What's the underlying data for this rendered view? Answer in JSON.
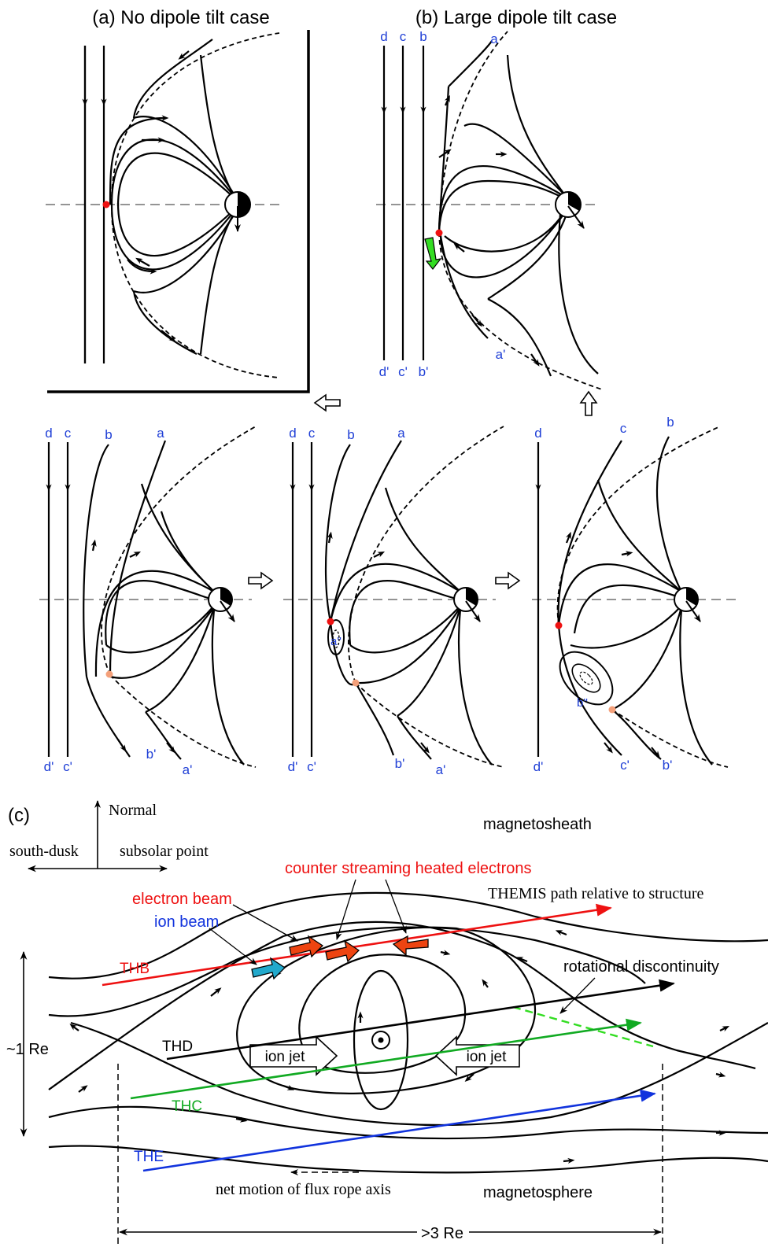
{
  "panel_a": {
    "title": "(a) No dipole tilt case"
  },
  "panel_b": {
    "title": "(b) Large dipole tilt case",
    "labels_top": [
      "d",
      "c",
      "b",
      "a"
    ],
    "labels_bottom": [
      "d'",
      "c'",
      "b'",
      "a'"
    ]
  },
  "step1": {
    "labels_top": [
      "d",
      "c",
      "b",
      "a"
    ],
    "labels_bottom": [
      "d'",
      "c'",
      "b'",
      "a'"
    ]
  },
  "step2": {
    "labels_top": [
      "d",
      "c",
      "b",
      "a"
    ],
    "labels_bottom": [
      "d'",
      "c'",
      "b'",
      "a'"
    ],
    "island_label": "a''"
  },
  "step3": {
    "labels_top": [
      "d",
      "c",
      "b"
    ],
    "labels_bottom": [
      "d'",
      "c'",
      "b'"
    ],
    "island_label": "b''"
  },
  "panel_c": {
    "title": "(c)",
    "normal": "Normal",
    "south_dusk": "south-dusk",
    "subsolar": "subsolar point",
    "magnetosheath": "magnetosheath",
    "magnetosphere": "magnetosphere",
    "counter_streaming": "counter streaming heated electrons",
    "electron_beam": "electron beam",
    "ion_beam": "ion beam",
    "themis_path": "THEMIS path relative to structure",
    "rotational": "rotational discontinuity",
    "thb": "THB",
    "thd": "THD",
    "thc": "THC",
    "the": "THE",
    "ion_jet_left": "ion jet",
    "ion_jet_right": "ion jet",
    "re_vertical": "~1 Re",
    "re_horizontal": ">3 Re",
    "net_motion": "net motion of flux rope axis"
  },
  "colors": {
    "label_blue": "#1f3fd6",
    "thb": "#ee1111",
    "thc": "#11aa22",
    "the": "#1133dd",
    "electron_arrow": "#ee4411",
    "ion_arrow": "#22a9cc",
    "green_arrow": "#33dd22",
    "x_point": "#ee1111",
    "x_point_secondary": "#f4a07a"
  }
}
